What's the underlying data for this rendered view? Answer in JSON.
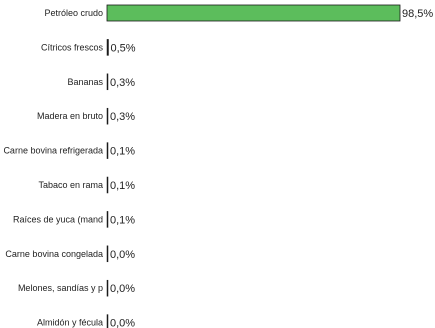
{
  "chart_data": {
    "type": "bar",
    "orientation": "horizontal",
    "categories": [
      "Petróleo crudo",
      "Cítricos frescos",
      "Bananas",
      "Madera en bruto",
      "Carne bovina refrigerada",
      "Tabaco en rama",
      "Raíces de yuca (mand",
      "Carne bovina congelada",
      "Melones, sandías y p",
      "Almidón y fécula"
    ],
    "values": [
      98.5,
      0.5,
      0.3,
      0.3,
      0.1,
      0.1,
      0.1,
      0.0,
      0.0,
      0.0
    ],
    "value_labels": [
      "98,5%",
      "0,5%",
      "0,3%",
      "0,3%",
      "0,1%",
      "0,1%",
      "0,1%",
      "0,0%",
      "0,0%",
      "0,0%"
    ],
    "xlim": [
      0,
      98.5
    ],
    "bar_color": "#5cbd5c",
    "bar_edge_color": "#1a1a1a",
    "grid": false,
    "legend": "none"
  }
}
